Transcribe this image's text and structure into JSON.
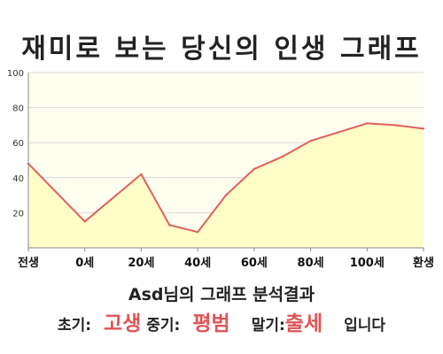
{
  "title": "재미로 보는 당신의 인생 그래프",
  "summary": {
    "name": "Asd",
    "suffix": "님의 그래프 분석결과"
  },
  "verdict": {
    "early_label": "초기:",
    "early_value": "고생",
    "middle_label": "중기:",
    "middle_value": "평범",
    "late_label": "말기:",
    "late_value": "출세",
    "ending": "입니다"
  },
  "colors": {
    "line": "#e06060",
    "fill": "#fffdc8",
    "plot_bg": "#fffff0",
    "grid": "#d8d8d8",
    "highlight": "#e05555"
  },
  "chart_data": {
    "type": "area",
    "x": [
      -20,
      0,
      20,
      30,
      40,
      50,
      60,
      70,
      80,
      90,
      100,
      110,
      120
    ],
    "values": [
      48,
      15,
      42,
      13,
      9,
      30,
      45,
      52,
      61,
      66,
      71,
      70,
      68
    ],
    "xlim": [
      -20,
      120
    ],
    "ylim": [
      0,
      100
    ],
    "y_ticks": [
      20,
      40,
      60,
      80,
      100
    ],
    "x_ticks": [
      {
        "value": -20,
        "label": "전생"
      },
      {
        "value": 0,
        "label": "0세"
      },
      {
        "value": 20,
        "label": "20세"
      },
      {
        "value": 40,
        "label": "40세"
      },
      {
        "value": 60,
        "label": "60세"
      },
      {
        "value": 80,
        "label": "80세"
      },
      {
        "value": 100,
        "label": "100세"
      },
      {
        "value": 120,
        "label": "환생"
      }
    ],
    "grid": "horizontal",
    "legend": "none"
  }
}
